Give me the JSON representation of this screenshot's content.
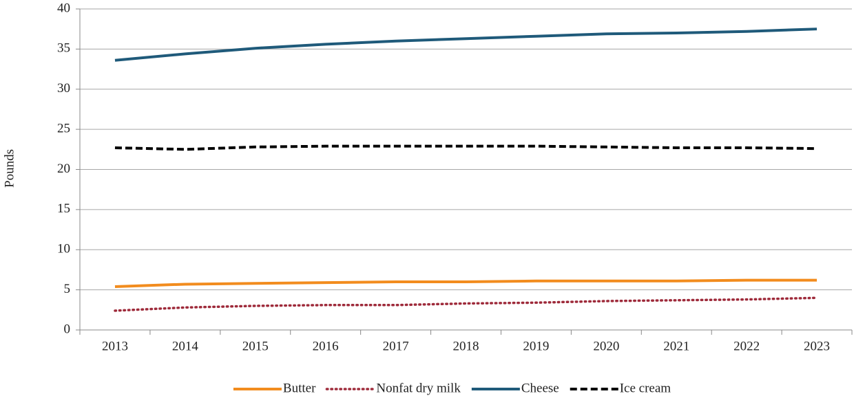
{
  "chart_data": {
    "type": "line",
    "y_label": "Pounds",
    "categories": [
      "2013",
      "2014",
      "2015",
      "2016",
      "2017",
      "2018",
      "2019",
      "2020",
      "2021",
      "2022",
      "2023"
    ],
    "series": [
      {
        "name": "Butter",
        "color": "#f28c1e",
        "style": "solid",
        "values": [
          5.4,
          5.7,
          5.8,
          5.9,
          6.0,
          6.0,
          6.1,
          6.1,
          6.1,
          6.2,
          6.2
        ]
      },
      {
        "name": "Nonfat dry milk",
        "color": "#9e2a3a",
        "style": "dotted",
        "values": [
          2.4,
          2.8,
          3.0,
          3.1,
          3.1,
          3.3,
          3.4,
          3.6,
          3.7,
          3.8,
          4.0
        ]
      },
      {
        "name": "Cheese",
        "color": "#1f5a7a",
        "style": "solid",
        "values": [
          33.6,
          34.4,
          35.1,
          35.6,
          36.0,
          36.3,
          36.6,
          36.9,
          37.0,
          37.2,
          37.5
        ]
      },
      {
        "name": "Ice cream",
        "color": "#000000",
        "style": "dashed",
        "values": [
          22.7,
          22.5,
          22.8,
          22.9,
          22.9,
          22.9,
          22.9,
          22.8,
          22.7,
          22.7,
          22.6
        ]
      }
    ],
    "ylim": [
      0,
      40
    ],
    "yticks": [
      0,
      5,
      10,
      15,
      20,
      25,
      30,
      35,
      40
    ],
    "grid": true,
    "legend": "bottom"
  }
}
